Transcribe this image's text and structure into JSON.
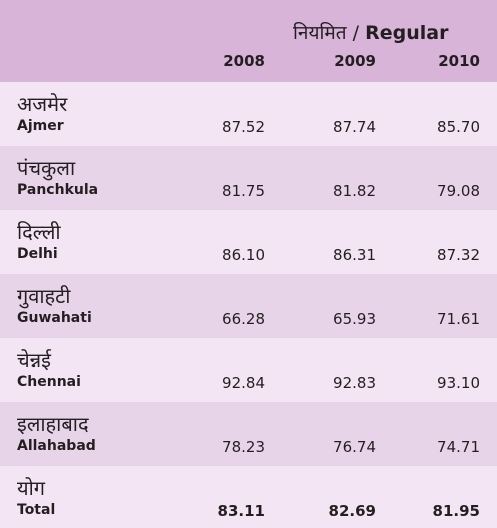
{
  "header": {
    "group_title_hi": "नियमित",
    "group_title_sep": " / ",
    "group_title_en": "Regular",
    "years": [
      "2008",
      "2009",
      "2010"
    ]
  },
  "rows": [
    {
      "name_hi": "अजमेर",
      "name_en": "Ajmer",
      "values": [
        "87.52",
        "87.74",
        "85.70"
      ]
    },
    {
      "name_hi": "पंचकुला",
      "name_en": "Panchkula",
      "values": [
        "81.75",
        "81.82",
        "79.08"
      ]
    },
    {
      "name_hi": "दिल्ली",
      "name_en": "Delhi",
      "values": [
        "86.10",
        "86.31",
        "87.32"
      ]
    },
    {
      "name_hi": "गुवाहटी",
      "name_en": "Guwahati",
      "values": [
        "66.28",
        "65.93",
        "71.61"
      ]
    },
    {
      "name_hi": "चेन्नई",
      "name_en": "Chennai",
      "values": [
        "92.84",
        "92.83",
        "93.10"
      ]
    },
    {
      "name_hi": "इलाहाबाद",
      "name_en": "Allahabad",
      "values": [
        "78.23",
        "76.74",
        "74.71"
      ]
    }
  ],
  "total": {
    "name_hi": "योग",
    "name_en": "Total",
    "values": [
      "83.11",
      "82.69",
      "81.95"
    ]
  }
}
